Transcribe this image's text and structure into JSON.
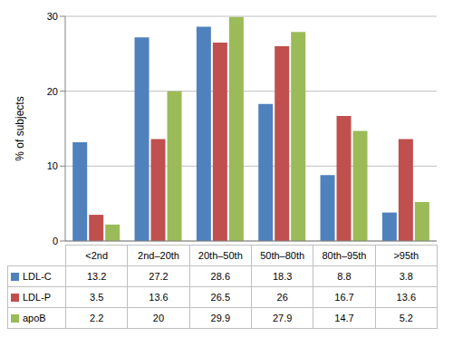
{
  "chart_data": {
    "type": "bar",
    "ylabel": "% of subjects",
    "categories": [
      "<2nd",
      "2nd–20th",
      "20th–50th",
      "50th–80th",
      "80th–95th",
      ">95th"
    ],
    "series": [
      {
        "name": "LDL-C",
        "color": "#4f81bd",
        "values": [
          13.2,
          27.2,
          28.6,
          18.3,
          8.8,
          3.8
        ]
      },
      {
        "name": "LDL-P",
        "color": "#c0504d",
        "values": [
          3.5,
          13.6,
          26.5,
          26.0,
          16.7,
          13.6
        ]
      },
      {
        "name": "apoB",
        "color": "#9bbb59",
        "values": [
          2.2,
          20,
          29.9,
          27.9,
          14.7,
          5.2
        ]
      }
    ],
    "ylim": [
      0,
      30
    ],
    "yticks": [
      0,
      10,
      20,
      30
    ],
    "grid": true
  }
}
